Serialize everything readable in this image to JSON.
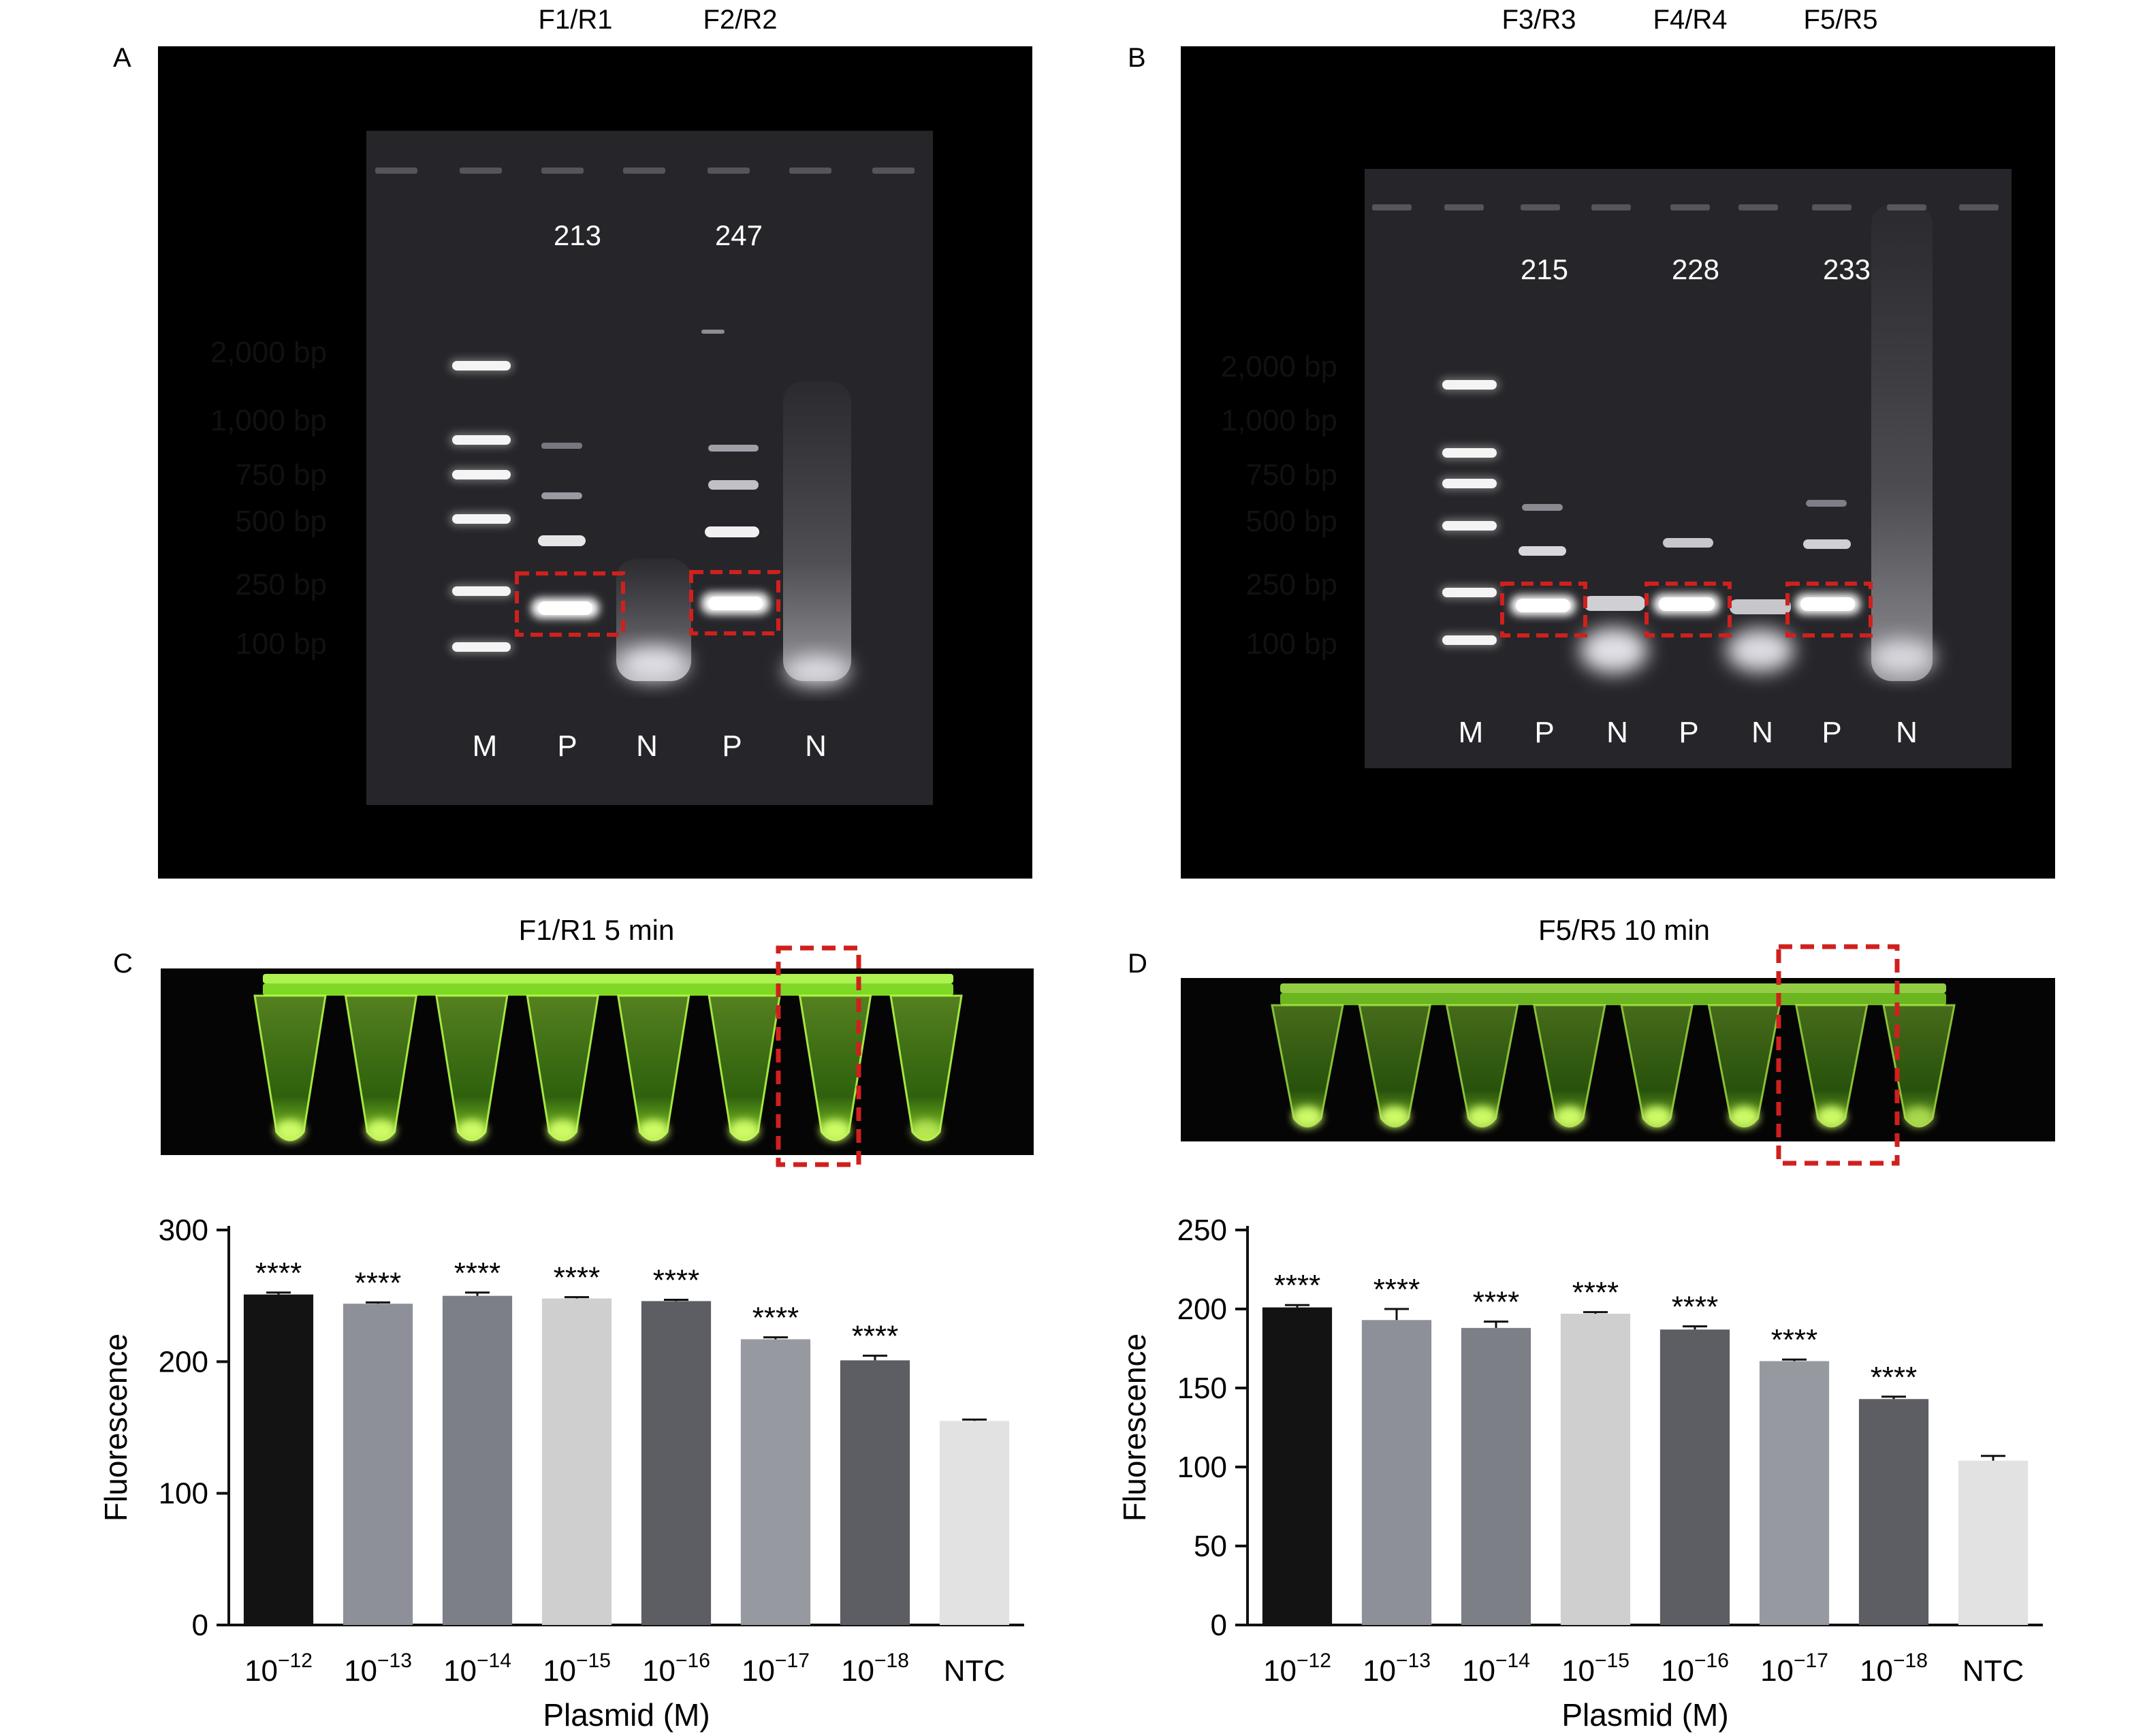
{
  "panelA": {
    "label": "A",
    "primer_pairs": [
      "F1/R1",
      "F2/R2"
    ],
    "product_sizes": [
      "213",
      "247"
    ],
    "ladder": [
      "2,000 bp",
      "1,000 bp",
      "750 bp",
      "500 bp",
      "250 bp",
      "100 bp"
    ],
    "lanes": [
      "M",
      "P",
      "N",
      "P",
      "N"
    ]
  },
  "panelB": {
    "label": "B",
    "primer_pairs": [
      "F3/R3",
      "F4/R4",
      "F5/R5"
    ],
    "product_sizes": [
      "215",
      "228",
      "233"
    ],
    "ladder": [
      "2,000 bp",
      "1,000 bp",
      "750 bp",
      "500 bp",
      "250 bp",
      "100 bp"
    ],
    "lanes": [
      "M",
      "P",
      "N",
      "P",
      "N",
      "P",
      "N"
    ]
  },
  "panelC": {
    "label": "C",
    "title": "F1/R1 5 min",
    "tube_count": 8,
    "highlight_tube_index": 6
  },
  "panelD": {
    "label": "D",
    "title": "F5/R5 10 min",
    "tube_count": 8,
    "highlight_tube_index": 6
  },
  "colors": {
    "gel_bg": "#000000",
    "gel_inner": "#26262a",
    "band": "#ffffff",
    "highlight_box": "#d0201e",
    "tube_green": "#7cf01e",
    "bars": [
      "#131313",
      "#8e9099",
      "#7d7f87",
      "#cfcfcf",
      "#5d5e63",
      "#9799a1",
      "#5d5e63",
      "#e2e2e2"
    ]
  },
  "chart_data": [
    {
      "type": "bar",
      "panel": "C",
      "categories": [
        "10-12",
        "10-13",
        "10-14",
        "10-15",
        "10-16",
        "10-17",
        "10-18",
        "NTC"
      ],
      "values": [
        251,
        244,
        250,
        248,
        246,
        217,
        201,
        155
      ],
      "errors": [
        1.5,
        1.0,
        2.5,
        1.0,
        1.0,
        1.5,
        3.5,
        1.0
      ],
      "significance": [
        "****",
        "****",
        "****",
        "****",
        "****",
        "****",
        "****",
        ""
      ],
      "xlabel": "Plasmid (M)",
      "ylabel": "Fluorescence",
      "ylim": [
        0,
        300
      ],
      "yticks": [
        0,
        100,
        200,
        300
      ]
    },
    {
      "type": "bar",
      "panel": "D",
      "categories": [
        "10-12",
        "10-13",
        "10-14",
        "10-15",
        "10-16",
        "10-17",
        "10-18",
        "NTC"
      ],
      "values": [
        201,
        193,
        188,
        197,
        187,
        167,
        143,
        104
      ],
      "errors": [
        1.5,
        7.0,
        4.0,
        1.0,
        2.0,
        1.0,
        1.5,
        3.0
      ],
      "significance": [
        "****",
        "****",
        "****",
        "****",
        "****",
        "****",
        "****",
        ""
      ],
      "xlabel": "Plasmid (M)",
      "ylabel": "Fluorescence",
      "ylim": [
        0,
        250
      ],
      "yticks": [
        0,
        50,
        100,
        150,
        200,
        250
      ]
    }
  ]
}
